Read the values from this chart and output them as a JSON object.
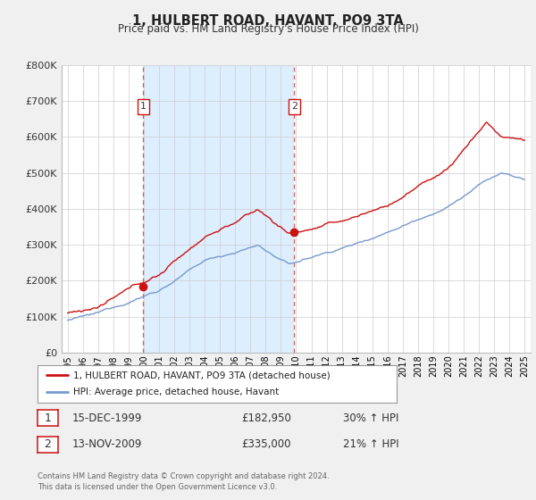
{
  "title": "1, HULBERT ROAD, HAVANT, PO9 3TA",
  "subtitle": "Price paid vs. HM Land Registry's House Price Index (HPI)",
  "background_color": "#f0f0f0",
  "plot_bg_color": "#ffffff",
  "grid_color": "#cccccc",
  "hpi_line_color": "#7799cc",
  "price_line_color": "#cc1111",
  "sale1_date": 1999.96,
  "sale1_price": 182950,
  "sale1_label": "1",
  "sale2_date": 2009.87,
  "sale2_price": 335000,
  "sale2_label": "2",
  "shade_color": "#ddeeff",
  "ylim": [
    0,
    800000
  ],
  "xlim": [
    1994.6,
    2025.4
  ],
  "legend_line1": "1, HULBERT ROAD, HAVANT, PO9 3TA (detached house)",
  "legend_line2": "HPI: Average price, detached house, Havant",
  "table_row1_num": "1",
  "table_row1_date": "15-DEC-1999",
  "table_row1_price": "£182,950",
  "table_row1_hpi": "30% ↑ HPI",
  "table_row2_num": "2",
  "table_row2_date": "13-NOV-2009",
  "table_row2_price": "£335,000",
  "table_row2_hpi": "21% ↑ HPI",
  "footer": "Contains HM Land Registry data © Crown copyright and database right 2024.\nThis data is licensed under the Open Government Licence v3.0."
}
